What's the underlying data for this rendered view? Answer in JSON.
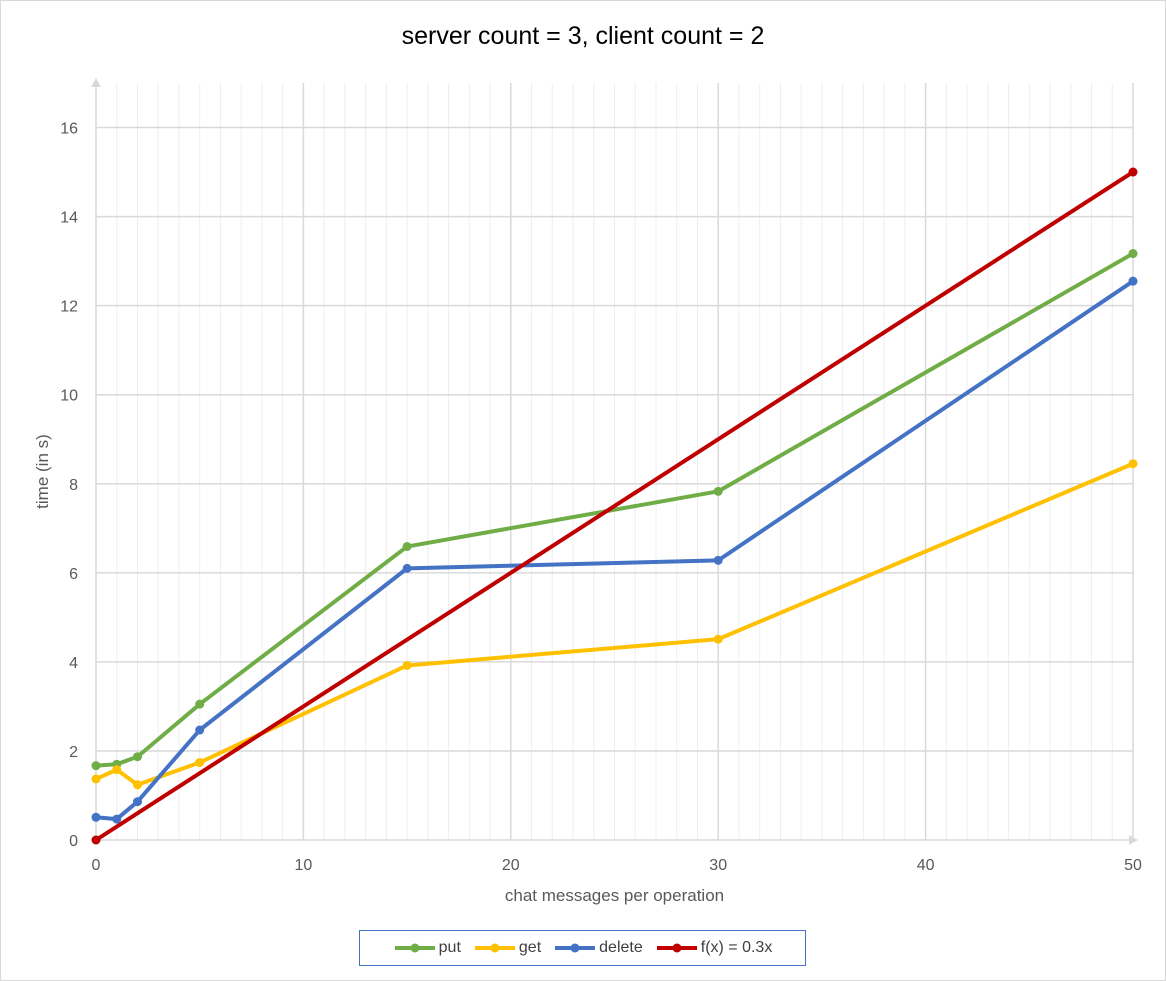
{
  "chart_data": {
    "type": "line",
    "title": "server count = 3, client count = 2",
    "xlabel": "chat messages per operation",
    "ylabel": "time (in s)",
    "xlim": [
      0,
      50
    ],
    "ylim": [
      0,
      17
    ],
    "xticks": [
      0,
      10,
      20,
      30,
      40,
      50
    ],
    "yticks": [
      0,
      2,
      4,
      6,
      8,
      10,
      12,
      14,
      16
    ],
    "grid": true,
    "legend_position": "bottom",
    "series": [
      {
        "name": "put",
        "color": "#70ad47",
        "x": [
          0,
          1,
          2,
          5,
          15,
          30,
          50
        ],
        "y": [
          1.67,
          1.7,
          1.87,
          3.05,
          6.59,
          7.83,
          13.17
        ]
      },
      {
        "name": "get",
        "color": "#ffc000",
        "x": [
          0,
          1,
          2,
          5,
          15,
          30,
          50
        ],
        "y": [
          1.37,
          1.58,
          1.24,
          1.74,
          3.92,
          4.51,
          8.45
        ]
      },
      {
        "name": "delete",
        "color": "#4472c4",
        "x": [
          0,
          1,
          2,
          5,
          15,
          30,
          50
        ],
        "y": [
          0.51,
          0.47,
          0.86,
          2.47,
          6.1,
          6.28,
          12.55
        ]
      },
      {
        "name": "f(x) = 0.3x",
        "color": "#c00000",
        "x": [
          0,
          50
        ],
        "y": [
          0,
          15
        ]
      }
    ]
  }
}
